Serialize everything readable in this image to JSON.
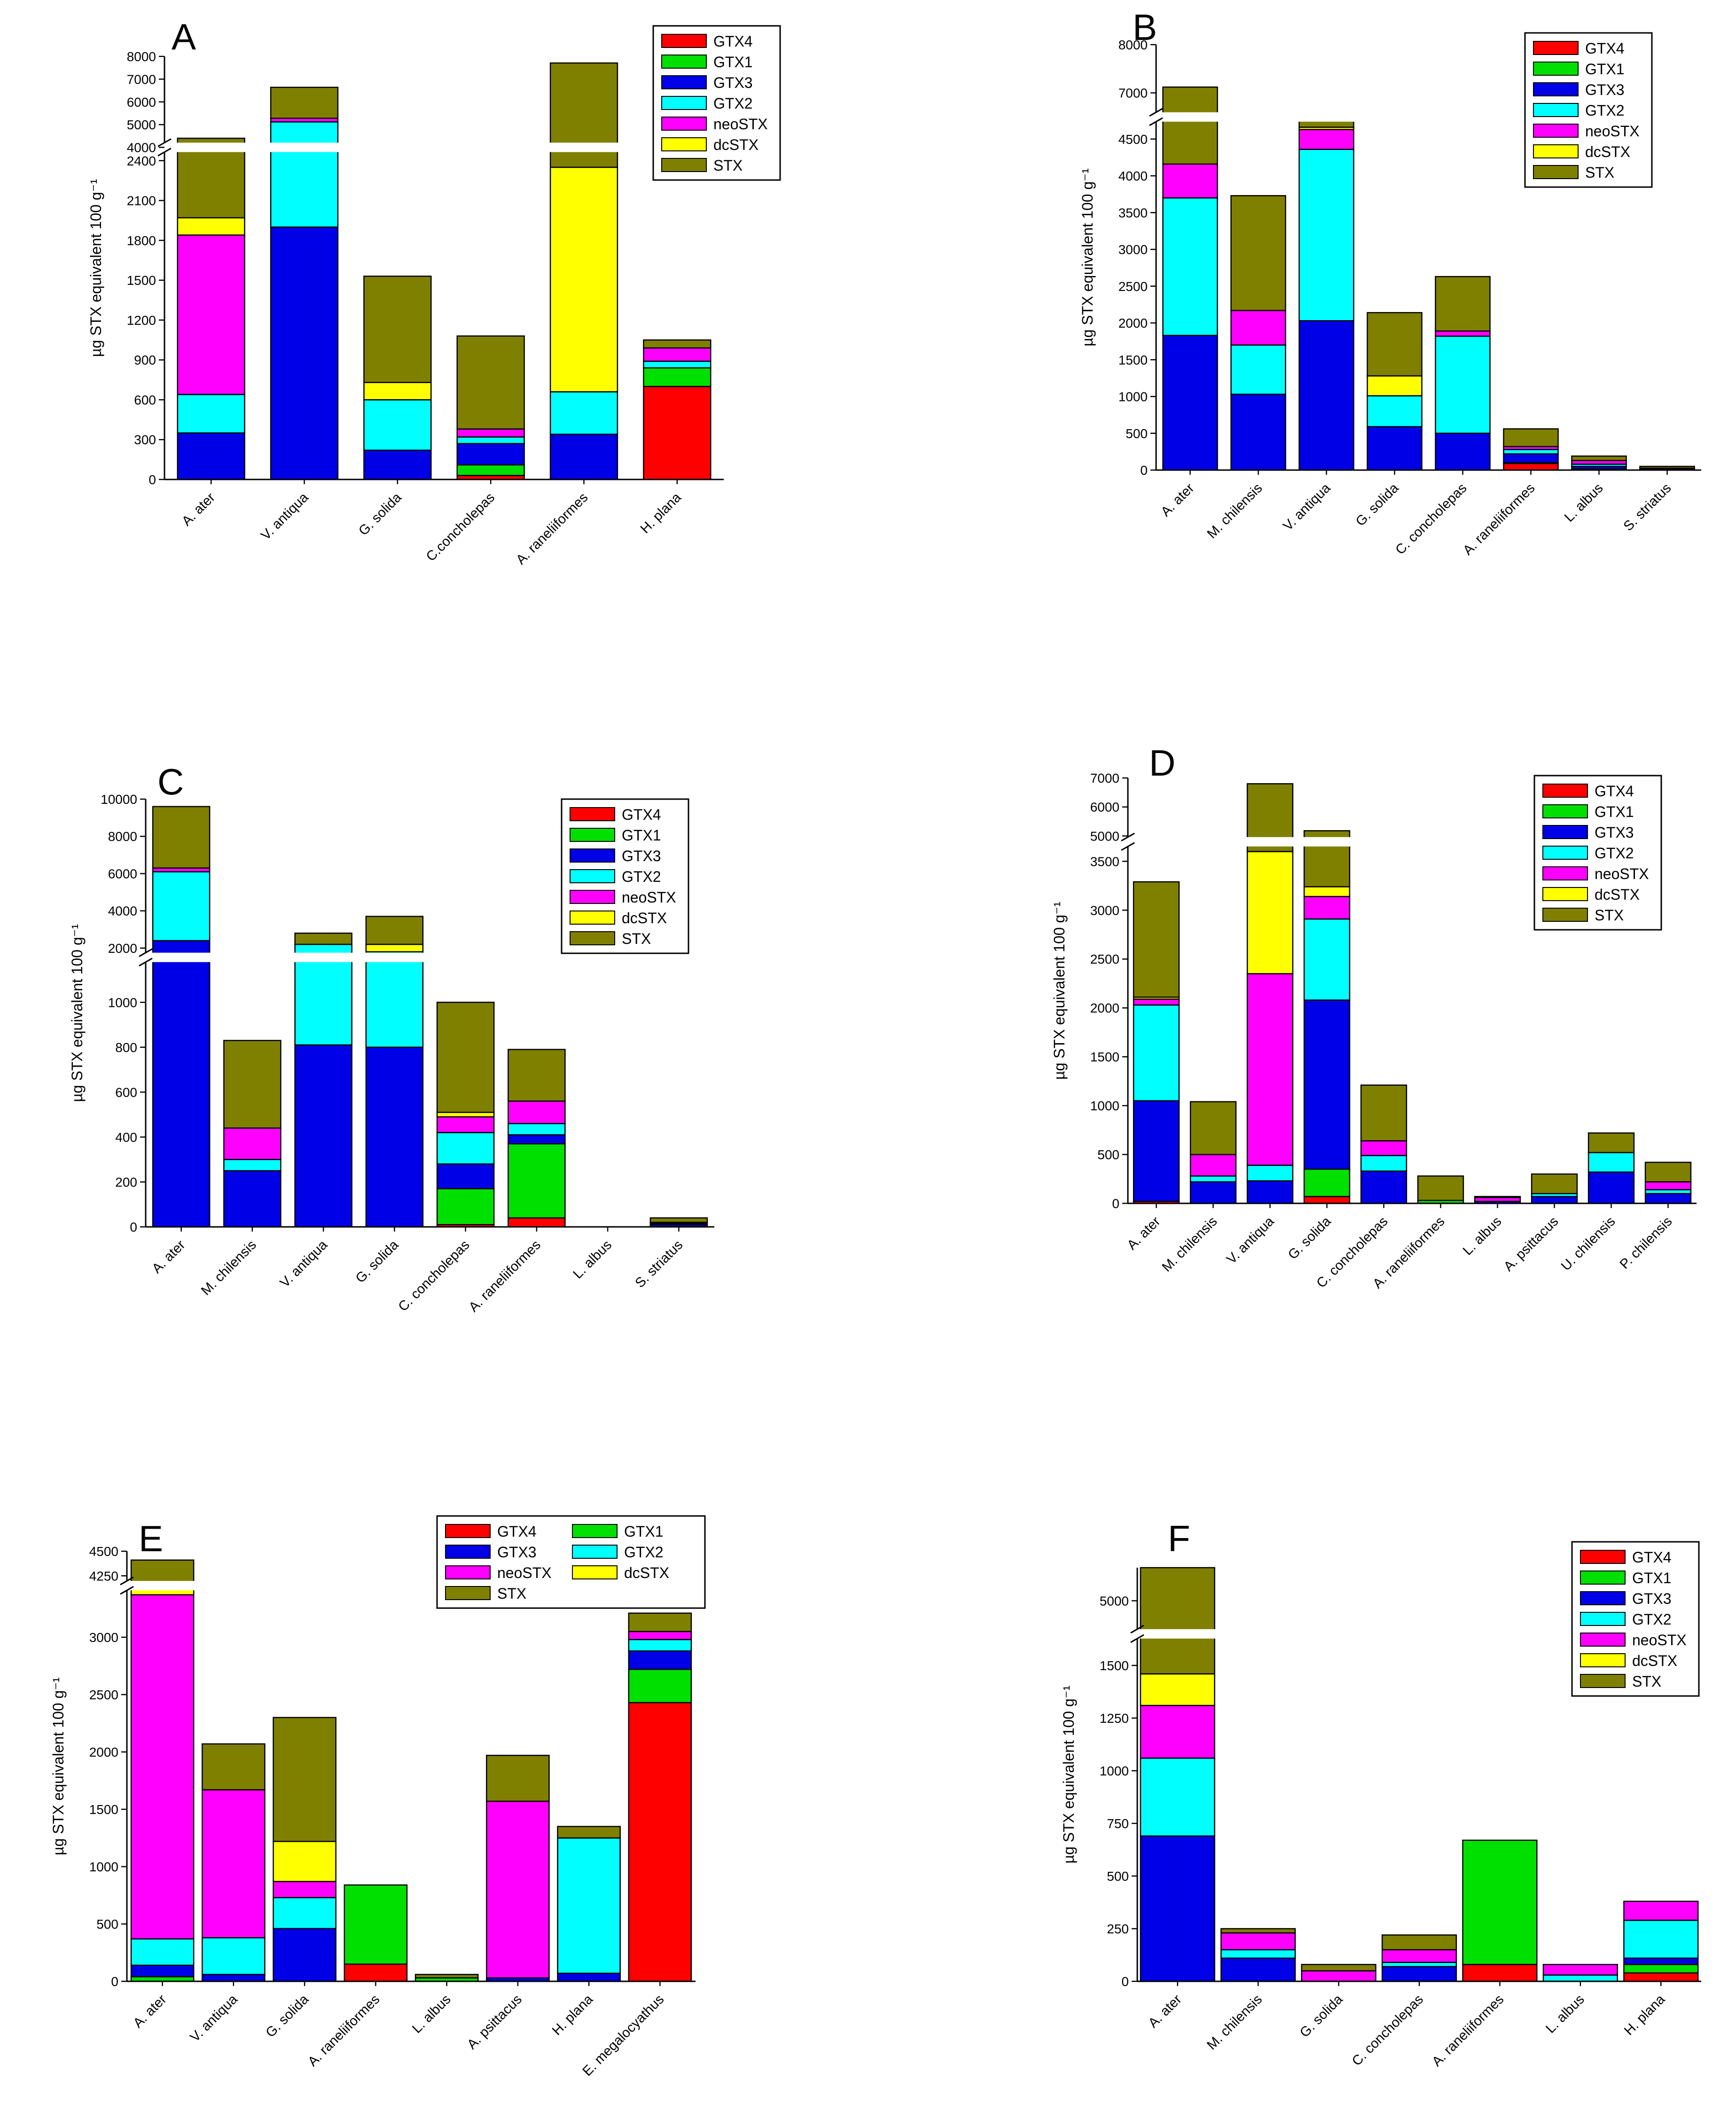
{
  "colors": {
    "GTX4": "#ff0000",
    "GTX1": "#00e000",
    "GTX3": "#0000e6",
    "GTX2": "#00ffff",
    "neoSTX": "#ff00ff",
    "dcSTX": "#ffff00",
    "STX": "#808000"
  },
  "chart_data": [
    {
      "type": "bar",
      "stacked": true,
      "panel": "A",
      "ylabel": "µg STX equivalent 100 g⁻¹",
      "legend": [
        "GTX4",
        "GTX1",
        "GTX3",
        "GTX2",
        "neoSTX",
        "dcSTX",
        "STX"
      ],
      "legend_position": "top-right",
      "axis_break": true,
      "lower_range": [
        0,
        2500
      ],
      "upper_range": [
        4000,
        8000
      ],
      "yticks_lower": [
        "0",
        "300",
        "600",
        "900",
        "1200",
        "1500",
        "1800",
        "2100",
        "2400"
      ],
      "yticks_upper": [
        "4000",
        "5000",
        "6000",
        "7000",
        "8000"
      ],
      "categories": [
        "A. ater",
        "V. antiqua",
        "G. solida",
        "C.concholepas",
        "A. raneliiformes",
        "H. plana"
      ],
      "series": [
        {
          "name": "GTX4",
          "values": [
            0,
            0,
            0,
            30,
            0,
            700
          ]
        },
        {
          "name": "GTX1",
          "values": [
            0,
            0,
            0,
            80,
            0,
            140
          ]
        },
        {
          "name": "GTX3",
          "values": [
            350,
            1900,
            220,
            160,
            340,
            0
          ]
        },
        {
          "name": "GTX2",
          "values": [
            290,
            3220,
            380,
            50,
            320,
            50
          ]
        },
        {
          "name": "neoSTX",
          "values": [
            1200,
            160,
            0,
            60,
            0,
            100
          ]
        },
        {
          "name": "dcSTX",
          "values": [
            130,
            0,
            130,
            0,
            1690,
            0
          ]
        },
        {
          "name": "STX",
          "values": [
            2430,
            1360,
            800,
            700,
            5360,
            60
          ]
        }
      ]
    },
    {
      "type": "bar",
      "stacked": true,
      "panel": "B",
      "ylabel": "µg STX equivalent 100 g⁻¹",
      "legend": [
        "GTX4",
        "GTX1",
        "GTX3",
        "GTX2",
        "neoSTX",
        "dcSTX",
        "STX"
      ],
      "legend_position": "top-right",
      "axis_break": true,
      "lower_range": [
        0,
        4800
      ],
      "upper_range": [
        6500,
        8000
      ],
      "yticks_lower": [
        "0",
        "500",
        "1000",
        "1500",
        "2000",
        "2500",
        "3000",
        "3500",
        "4000",
        "4500"
      ],
      "yticks_upper": [
        "7000",
        "8000"
      ],
      "categories": [
        "A. ater",
        "M. chilensis",
        "V. antiqua",
        "G. solida",
        "C. concholepas",
        "A. raneliiformes",
        "L. albus",
        "S. striatus"
      ],
      "series": [
        {
          "name": "GTX4",
          "values": [
            0,
            0,
            0,
            0,
            0,
            90,
            10,
            0
          ]
        },
        {
          "name": "GTX1",
          "values": [
            0,
            0,
            0,
            0,
            0,
            10,
            5,
            0
          ]
        },
        {
          "name": "GTX3",
          "values": [
            1830,
            1030,
            2030,
            590,
            500,
            120,
            35,
            10
          ]
        },
        {
          "name": "GTX2",
          "values": [
            1870,
            670,
            2330,
            420,
            1320,
            60,
            30,
            10
          ]
        },
        {
          "name": "neoSTX",
          "values": [
            460,
            470,
            270,
            0,
            70,
            40,
            50,
            5
          ]
        },
        {
          "name": "dcSTX",
          "values": [
            0,
            0,
            30,
            270,
            0,
            0,
            0,
            0
          ]
        },
        {
          "name": "STX",
          "values": [
            2960,
            1560,
            1830,
            860,
            740,
            240,
            60,
            25
          ]
        }
      ]
    },
    {
      "type": "bar",
      "stacked": true,
      "panel": "C",
      "ylabel": "µg STX equivalent 100 g⁻¹",
      "legend": [
        "GTX4",
        "GTX1",
        "GTX3",
        "GTX2",
        "neoSTX",
        "dcSTX",
        "STX"
      ],
      "legend_position": "top-right",
      "axis_break": true,
      "lower_range": [
        0,
        1200
      ],
      "upper_range": [
        1500,
        10000
      ],
      "yticks_lower": [
        "0",
        "200",
        "400",
        "600",
        "800",
        "1000"
      ],
      "yticks_upper": [
        "2000",
        "4000",
        "6000",
        "8000",
        "10000"
      ],
      "categories": [
        "A. ater",
        "M. chilensis",
        "V. antiqua",
        "G. solida",
        "C. concholepas",
        "A. raneliiformes",
        "L. albus",
        "S. striatus"
      ],
      "series": [
        {
          "name": "GTX4",
          "values": [
            0,
            0,
            0,
            0,
            10,
            40,
            0,
            0
          ]
        },
        {
          "name": "GTX1",
          "values": [
            0,
            0,
            0,
            0,
            160,
            330,
            0,
            0
          ]
        },
        {
          "name": "GTX3",
          "values": [
            2400,
            250,
            810,
            800,
            110,
            40,
            0,
            10
          ]
        },
        {
          "name": "GTX2",
          "values": [
            3700,
            50,
            1390,
            1000,
            140,
            50,
            0,
            5
          ]
        },
        {
          "name": "neoSTX",
          "values": [
            200,
            140,
            0,
            0,
            70,
            100,
            0,
            5
          ]
        },
        {
          "name": "dcSTX",
          "values": [
            0,
            0,
            0,
            400,
            20,
            0,
            0,
            0
          ]
        },
        {
          "name": "STX",
          "values": [
            3300,
            390,
            600,
            1500,
            490,
            230,
            0,
            20
          ]
        }
      ]
    },
    {
      "type": "bar",
      "stacked": true,
      "panel": "D",
      "ylabel": "µg STX equivalent 100 g⁻¹",
      "legend": [
        "GTX4",
        "GTX1",
        "GTX3",
        "GTX2",
        "neoSTX",
        "dcSTX",
        "STX"
      ],
      "legend_position": "top-right",
      "axis_break": true,
      "lower_range": [
        0,
        3700
      ],
      "upper_range": [
        4800,
        7000
      ],
      "yticks_lower": [
        "0",
        "500",
        "1000",
        "1500",
        "2000",
        "2500",
        "3000",
        "3500"
      ],
      "yticks_upper": [
        "5000",
        "6000",
        "7000"
      ],
      "categories": [
        "A. ater",
        "M. chilensis",
        "V. antiqua",
        "G. solida",
        "C. concholepas",
        "A. raneliiformes",
        "L. albus",
        "A. psittacus",
        "U. chilensis",
        "P. chilensis"
      ],
      "series": [
        {
          "name": "GTX4",
          "values": [
            20,
            0,
            0,
            70,
            0,
            0,
            0,
            0,
            0,
            0
          ]
        },
        {
          "name": "GTX1",
          "values": [
            0,
            0,
            0,
            280,
            0,
            30,
            0,
            0,
            0,
            0
          ]
        },
        {
          "name": "GTX3",
          "values": [
            1030,
            220,
            230,
            1730,
            330,
            0,
            20,
            70,
            320,
            100
          ]
        },
        {
          "name": "GTX2",
          "values": [
            980,
            60,
            160,
            830,
            160,
            0,
            0,
            30,
            200,
            40
          ]
        },
        {
          "name": "neoSTX",
          "values": [
            60,
            220,
            1960,
            230,
            150,
            0,
            40,
            0,
            0,
            80
          ]
        },
        {
          "name": "dcSTX",
          "values": [
            20,
            0,
            1250,
            100,
            0,
            0,
            0,
            0,
            0,
            0
          ]
        },
        {
          "name": "STX",
          "values": [
            1180,
            540,
            3200,
            1940,
            570,
            250,
            10,
            200,
            200,
            200
          ]
        }
      ]
    },
    {
      "type": "bar",
      "stacked": true,
      "panel": "E",
      "ylabel": "µg STX equivalent 100 g⁻¹",
      "legend": [
        "GTX4",
        "GTX1",
        "GTX3",
        "GTX2",
        "neoSTX",
        "dcSTX",
        "STX"
      ],
      "legend_position": "top-right",
      "axis_break": true,
      "lower_range": [
        0,
        3450
      ],
      "upper_range": [
        4150,
        4500
      ],
      "yticks_lower": [
        "0",
        "500",
        "1000",
        "1500",
        "2000",
        "2500",
        "3000"
      ],
      "yticks_upper": [
        "4250",
        "4500"
      ],
      "categories": [
        "A. ater",
        "V. antiqua",
        "G. solida",
        "A. raneliiformes",
        "L. albus",
        "A. psittacus",
        "H. plana",
        "E. megalocyathus"
      ],
      "series": [
        {
          "name": "GTX4",
          "values": [
            0,
            0,
            0,
            150,
            0,
            0,
            0,
            2430
          ]
        },
        {
          "name": "GTX1",
          "values": [
            40,
            0,
            0,
            690,
            30,
            0,
            0,
            290
          ]
        },
        {
          "name": "GTX3",
          "values": [
            100,
            60,
            460,
            0,
            0,
            30,
            70,
            160
          ]
        },
        {
          "name": "GTX2",
          "values": [
            230,
            320,
            270,
            0,
            0,
            0,
            1180,
            100
          ]
        },
        {
          "name": "neoSTX",
          "values": [
            3000,
            1290,
            140,
            0,
            0,
            1540,
            0,
            70
          ]
        },
        {
          "name": "dcSTX",
          "values": [
            80,
            0,
            350,
            0,
            0,
            0,
            0,
            0
          ]
        },
        {
          "name": "STX",
          "values": [
            960,
            400,
            1080,
            0,
            30,
            400,
            100,
            160
          ]
        }
      ]
    },
    {
      "type": "bar",
      "stacked": true,
      "panel": "F",
      "ylabel": "µg STX equivalent 100 g⁻¹",
      "legend": [
        "GTX4",
        "GTX1",
        "GTX3",
        "GTX2",
        "neoSTX",
        "dcSTX",
        "STX"
      ],
      "legend_position": "top-right",
      "axis_break": true,
      "lower_range": [
        0,
        1650
      ],
      "upper_range": [
        4800,
        5200
      ],
      "yticks_lower": [
        "0",
        "250",
        "500",
        "750",
        "1000",
        "1250",
        "1500"
      ],
      "yticks_upper": [
        "5000"
      ],
      "categories": [
        "A. ater",
        "M. chilensis",
        "G. solida",
        "C. concholepas",
        "A. raneliiformes",
        "L. albus",
        "H. plana"
      ],
      "series": [
        {
          "name": "GTX4",
          "values": [
            0,
            0,
            0,
            0,
            80,
            0,
            40
          ]
        },
        {
          "name": "GTX1",
          "values": [
            0,
            0,
            0,
            0,
            590,
            0,
            40
          ]
        },
        {
          "name": "GTX3",
          "values": [
            690,
            110,
            0,
            70,
            0,
            0,
            30
          ]
        },
        {
          "name": "GTX2",
          "values": [
            370,
            40,
            0,
            20,
            0,
            30,
            180
          ]
        },
        {
          "name": "neoSTX",
          "values": [
            250,
            80,
            50,
            60,
            0,
            50,
            90
          ]
        },
        {
          "name": "dcSTX",
          "values": [
            150,
            0,
            0,
            0,
            0,
            0,
            0
          ]
        },
        {
          "name": "STX",
          "values": [
            3740,
            20,
            30,
            70,
            0,
            0,
            0
          ]
        }
      ]
    }
  ]
}
